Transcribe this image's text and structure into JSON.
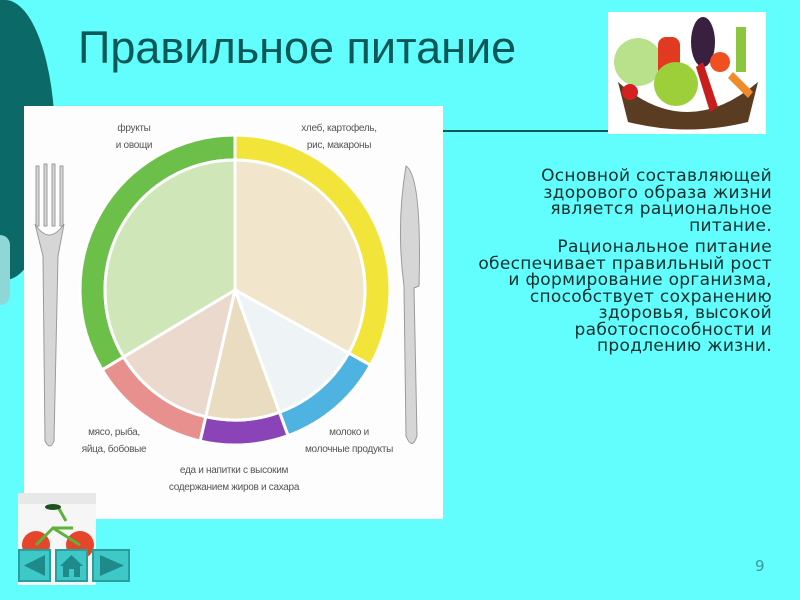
{
  "slide": {
    "title": "Правильное питание",
    "page_number": "9",
    "body_paragraphs": [
      "Основной составляющей здорового образа жизни является рациональное питание.",
      "Рациональное питание обеспечивает правильный рост и формирование организма, способствует сохранению здоровья, высокой работоспособности и продлению жизни."
    ],
    "plate_labels": {
      "fruits_line1": "фрукты",
      "fruits_line2": "и овощи",
      "bread_line1": "хлеб, картофель,",
      "bread_line2": "рис, макароны",
      "meat_line1": "мясо, рыба,",
      "meat_line2": "яйца, бобовые",
      "dairy_line1": "молоко и",
      "dairy_line2": "молочные продукты",
      "sweets_line1": "еда и напитки с высоким",
      "sweets_line2": "содержанием жиров и сахара"
    },
    "plate_colors": {
      "green": "#6cc04a",
      "yellow": "#f3e43a",
      "blue": "#4eb3e0",
      "purple": "#8a44b8",
      "pink": "#e8908e"
    },
    "nav": {
      "prev_icon": "triangle-left-icon",
      "home_icon": "home-icon",
      "next_icon": "triangle-right-icon"
    }
  }
}
